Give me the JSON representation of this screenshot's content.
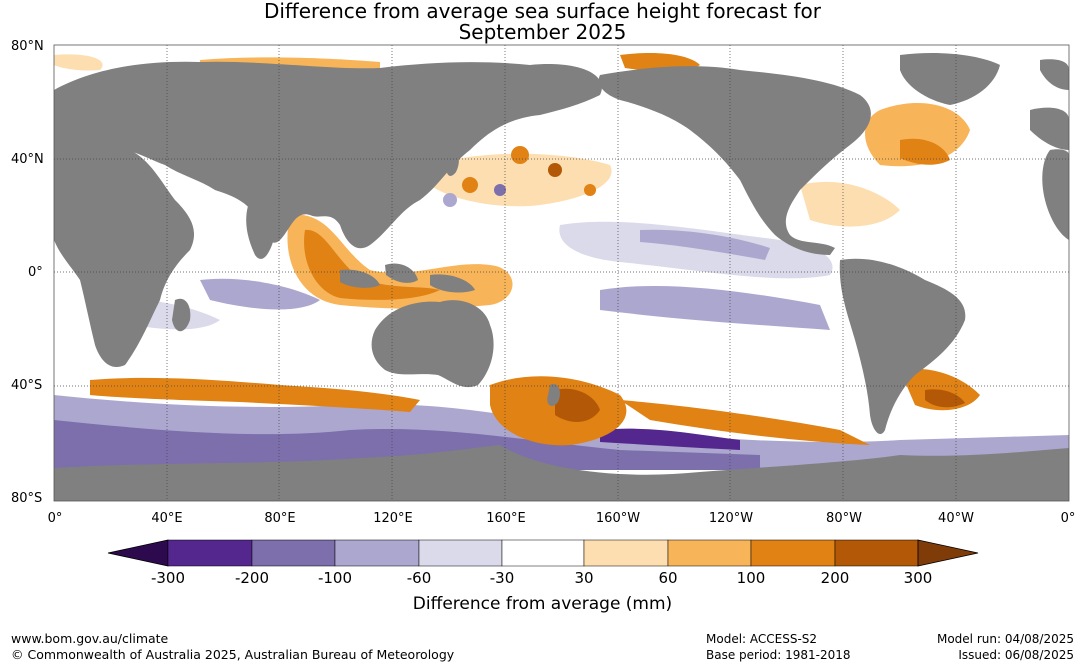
{
  "title": {
    "line1": "Difference from average sea surface height forecast for",
    "line2": "September 2025"
  },
  "map": {
    "lat_labels": [
      "80°N",
      "40°N",
      "0°",
      "40°S",
      "80°S"
    ],
    "lon_labels": [
      "0°",
      "40°E",
      "80°E",
      "120°E",
      "160°E",
      "160°W",
      "120°W",
      "80°W",
      "40°W",
      "0°"
    ],
    "land_color": "#808080",
    "ocean_background": "#ffffff"
  },
  "colorbar": {
    "label": "Difference from average (mm)",
    "ticks": [
      "-300",
      "-200",
      "-100",
      "-60",
      "-30",
      "30",
      "60",
      "100",
      "200",
      "300"
    ],
    "colors": [
      "#2d0a4e",
      "#54278f",
      "#7c6fac",
      "#aca7cf",
      "#dadaeb",
      "#ffffff",
      "#fddeb0",
      "#f8b459",
      "#e08214",
      "#b35806",
      "#7f3b08"
    ]
  },
  "footer": {
    "website": "www.bom.gov.au/climate",
    "copyright": "© Commonwealth of Australia 2025, Australian Bureau of Meteorology",
    "model": "Model: ACCESS-S2",
    "base_period": "Base period: 1981-2018",
    "model_run": "Model run: 04/08/2025",
    "issued": "Issued: 06/08/2025"
  }
}
